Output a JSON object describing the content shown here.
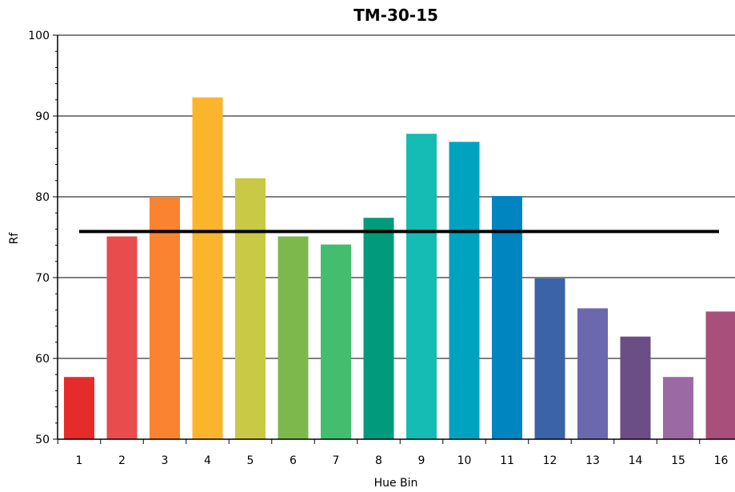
{
  "chart_data": {
    "type": "bar",
    "title": "TM-30-15",
    "xlabel": "Hue Bin",
    "ylabel": "Rf",
    "ylim": [
      50,
      100
    ],
    "yticks": [
      50,
      60,
      70,
      80,
      90,
      100
    ],
    "grid": true,
    "categories": [
      "1",
      "2",
      "3",
      "4",
      "5",
      "6",
      "7",
      "8",
      "9",
      "10",
      "11",
      "12",
      "13",
      "14",
      "15",
      "16"
    ],
    "values": [
      57.7,
      75.1,
      80.0,
      92.3,
      82.3,
      75.1,
      74.1,
      77.4,
      87.8,
      86.8,
      80.1,
      69.9,
      66.2,
      62.7,
      57.7,
      65.8
    ],
    "colors": [
      "#e62b2b",
      "#e84c4d",
      "#fa8331",
      "#fbb52c",
      "#c9c945",
      "#7db84d",
      "#44be6e",
      "#019b7b",
      "#15bcb3",
      "#00a3bf",
      "#0085c1",
      "#3a63a8",
      "#6b68ae",
      "#6a4e85",
      "#9b69a3",
      "#a84f7c"
    ],
    "reference_line": {
      "value": 75.7,
      "color": "#000000"
    }
  }
}
